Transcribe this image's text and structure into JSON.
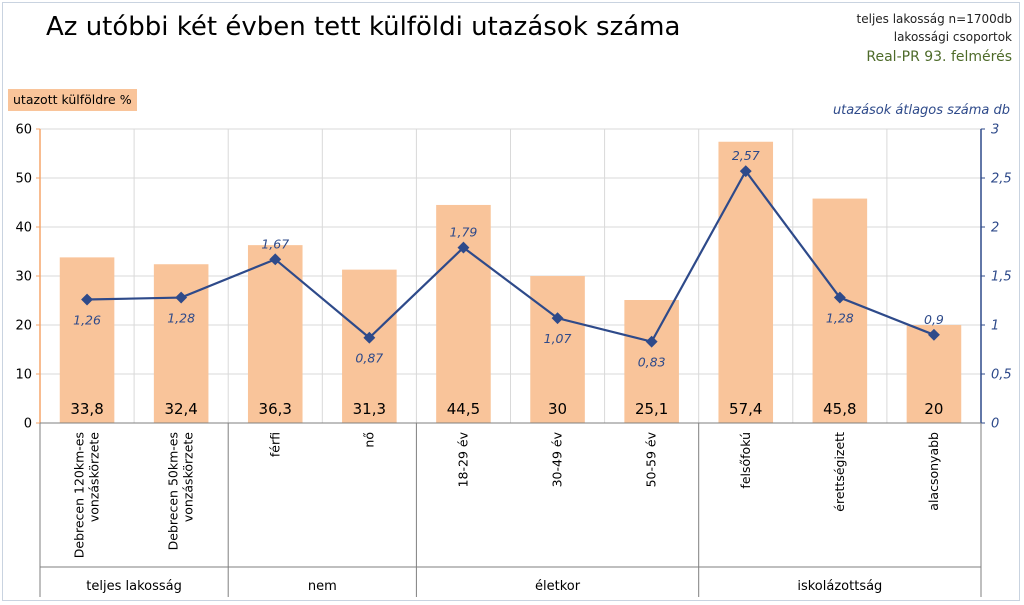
{
  "header": {
    "title": "Az utóbbi két évben tett külföldi utazások száma",
    "note_line1": "teljes lakosság n=1700db",
    "note_line2": "lakossági csoportok",
    "source": "Real-PR 93. felmérés"
  },
  "chart_data": {
    "type": "bar",
    "combo": "bar + line (secondary axis)",
    "title": "Az utóbbi két évben tett külföldi utazások száma",
    "ylabel": "utazott külföldre %",
    "y2label": "utazások átlagos száma db",
    "ylim": [
      0,
      60
    ],
    "y2lim": [
      0,
      3
    ],
    "yticks": [
      "0",
      "10",
      "20",
      "30",
      "40",
      "50",
      "60"
    ],
    "y2ticks": [
      "0",
      "0,5",
      "1",
      "1,5",
      "2",
      "2,5",
      "3"
    ],
    "grid": true,
    "legend": "none",
    "bar_color": "#f9c49a",
    "line_color": "#2e4a8a",
    "categories": [
      [
        "Debrecen 120km-es",
        "vonzáskörzete"
      ],
      [
        "Debrecen 50km-es",
        "vonzáskörzete"
      ],
      [
        "férfi"
      ],
      [
        "nő"
      ],
      [
        "18-29 év"
      ],
      [
        "30-49 év"
      ],
      [
        "50-59 év"
      ],
      [
        "felsőfokú"
      ],
      [
        "érettségizett"
      ],
      [
        "alacsonyabb"
      ]
    ],
    "groups": [
      {
        "label": "teljes lakosság",
        "span": 2
      },
      {
        "label": "nem",
        "span": 2
      },
      {
        "label": "életkor",
        "span": 3
      },
      {
        "label": "iskolázottság",
        "span": 3
      }
    ],
    "series": [
      {
        "type": "bar",
        "axis": "left",
        "values": [
          33.8,
          32.4,
          36.3,
          31.3,
          44.5,
          30,
          25.1,
          57.4,
          45.8,
          20
        ],
        "labels": [
          "33,8",
          "32,4",
          "36,3",
          "31,3",
          "44,5",
          "30",
          "25,1",
          "57,4",
          "45,8",
          "20"
        ]
      },
      {
        "type": "line",
        "axis": "right",
        "values": [
          1.26,
          1.28,
          1.67,
          0.87,
          1.79,
          1.07,
          0.83,
          2.57,
          1.28,
          0.9
        ],
        "labels": [
          "1,26",
          "1,28",
          "1,67",
          "0,87",
          "1,79",
          "1,07",
          "0,83",
          "2,57",
          "1,28",
          "0,9"
        ],
        "label_position": [
          "below",
          "below",
          "above",
          "below",
          "above",
          "below",
          "below",
          "above",
          "below",
          "above"
        ]
      }
    ]
  }
}
